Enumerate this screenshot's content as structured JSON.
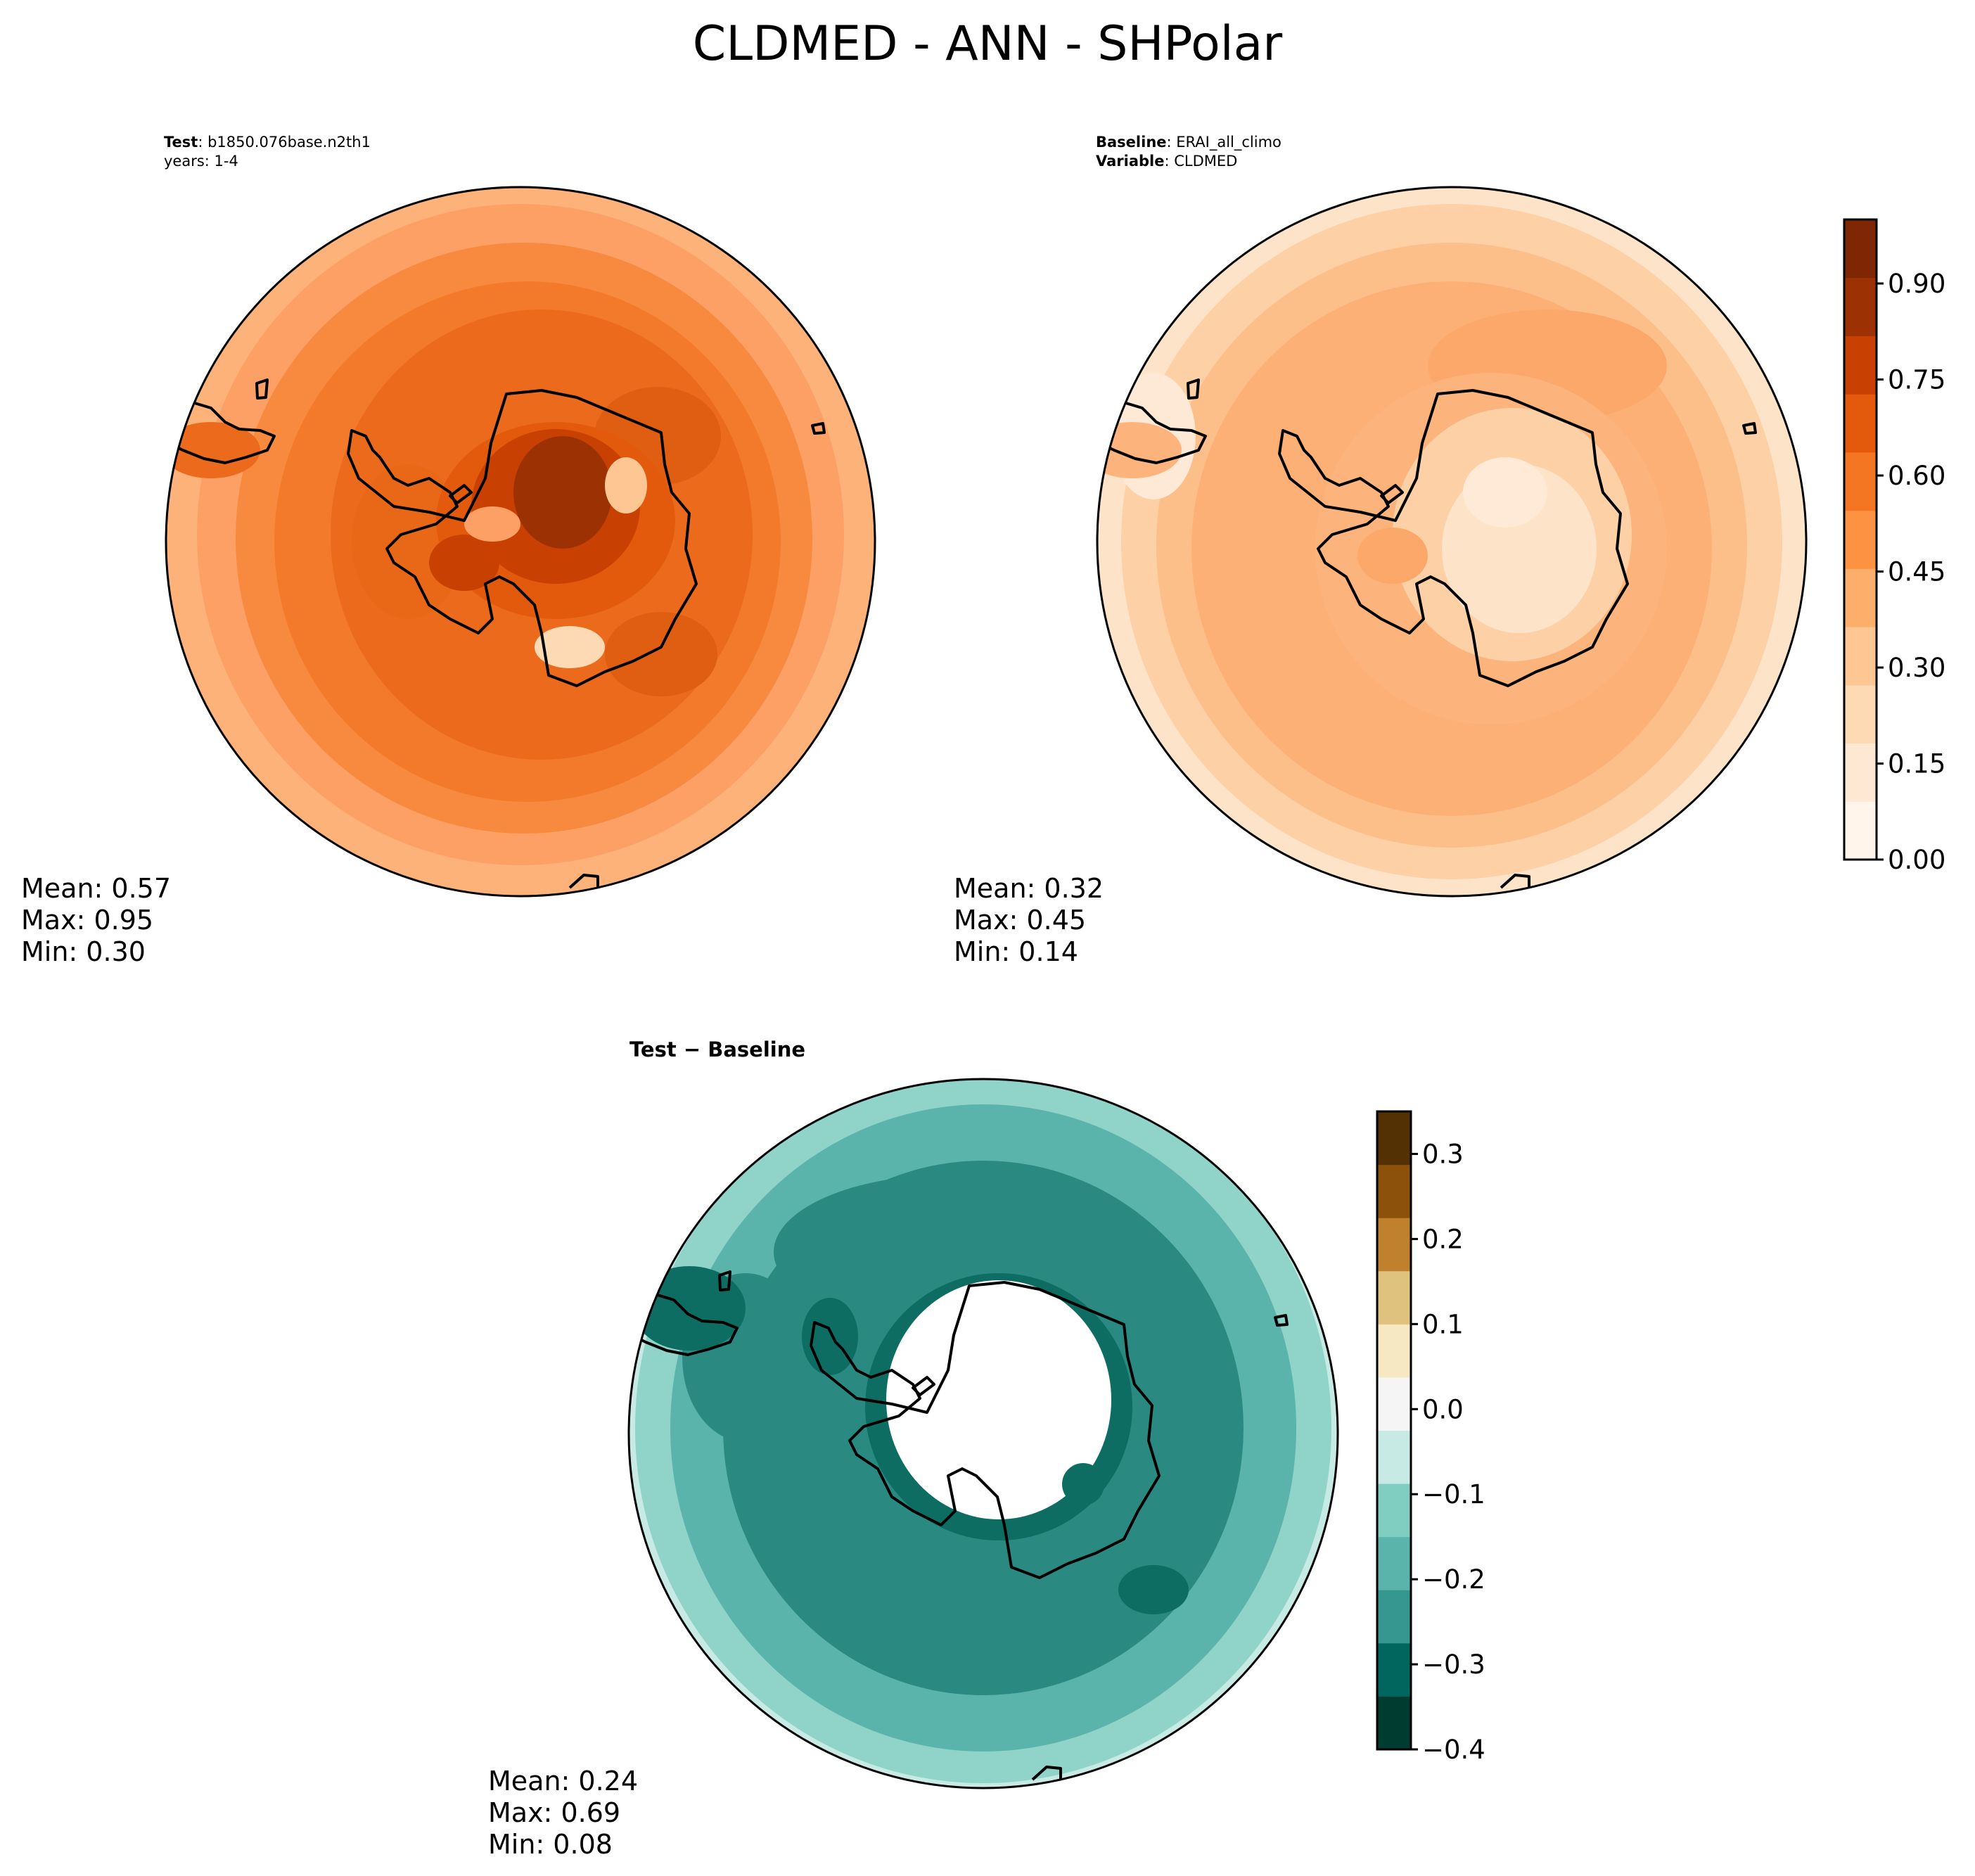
{
  "title": "CLDMED - ANN - SHPolar",
  "test_panel": {
    "name_label": "Test",
    "name_value": "b1850.076base.n2th1",
    "years_text": "years: 1-4",
    "mean": "Mean:  0.57",
    "max": "Max:  0.95",
    "min": "Min:  0.30"
  },
  "baseline_panel": {
    "name_label": "Baseline",
    "name_value": "ERAI_all_climo",
    "variable_label": "Variable",
    "variable_value": "CLDMED",
    "mean": "Mean:  0.32",
    "max": "Max:  0.45",
    "min": "Min:  0.14"
  },
  "diff_panel": {
    "title": "Test − Baseline",
    "mean": "Mean:  0.24",
    "max": "Max:  0.69",
    "min": "Min:  0.08"
  },
  "colorbar_main": {
    "ticks": [
      "0.00",
      "0.15",
      "0.30",
      "0.45",
      "0.60",
      "0.75",
      "0.90"
    ],
    "tick_values": [
      0,
      0.15,
      0.3,
      0.45,
      0.6,
      0.75,
      0.9
    ],
    "range": [
      0,
      1.0
    ],
    "colors": [
      "#fff5eb",
      "#fee8d3",
      "#fdd9b4",
      "#fdc692",
      "#fdae6b",
      "#fd9243",
      "#f57622",
      "#e45a0d",
      "#c84103",
      "#9c3203",
      "#7f2704"
    ]
  },
  "colorbar_diff": {
    "ticks": [
      "0.3",
      "0.2",
      "0.1",
      "0.0",
      "−0.1",
      "−0.2",
      "−0.3",
      "−0.4"
    ],
    "tick_values": [
      0.3,
      0.2,
      0.1,
      0.0,
      -0.1,
      -0.2,
      -0.3,
      -0.4
    ],
    "range": [
      -0.4,
      0.35
    ],
    "colors": [
      "#003c30",
      "#00665e",
      "#35978f",
      "#5ab4ac",
      "#80cdc1",
      "#c7eae5",
      "#f5f5f5",
      "#f6e8c3",
      "#dfc27d",
      "#bf812d",
      "#8c510a",
      "#543005"
    ]
  }
}
